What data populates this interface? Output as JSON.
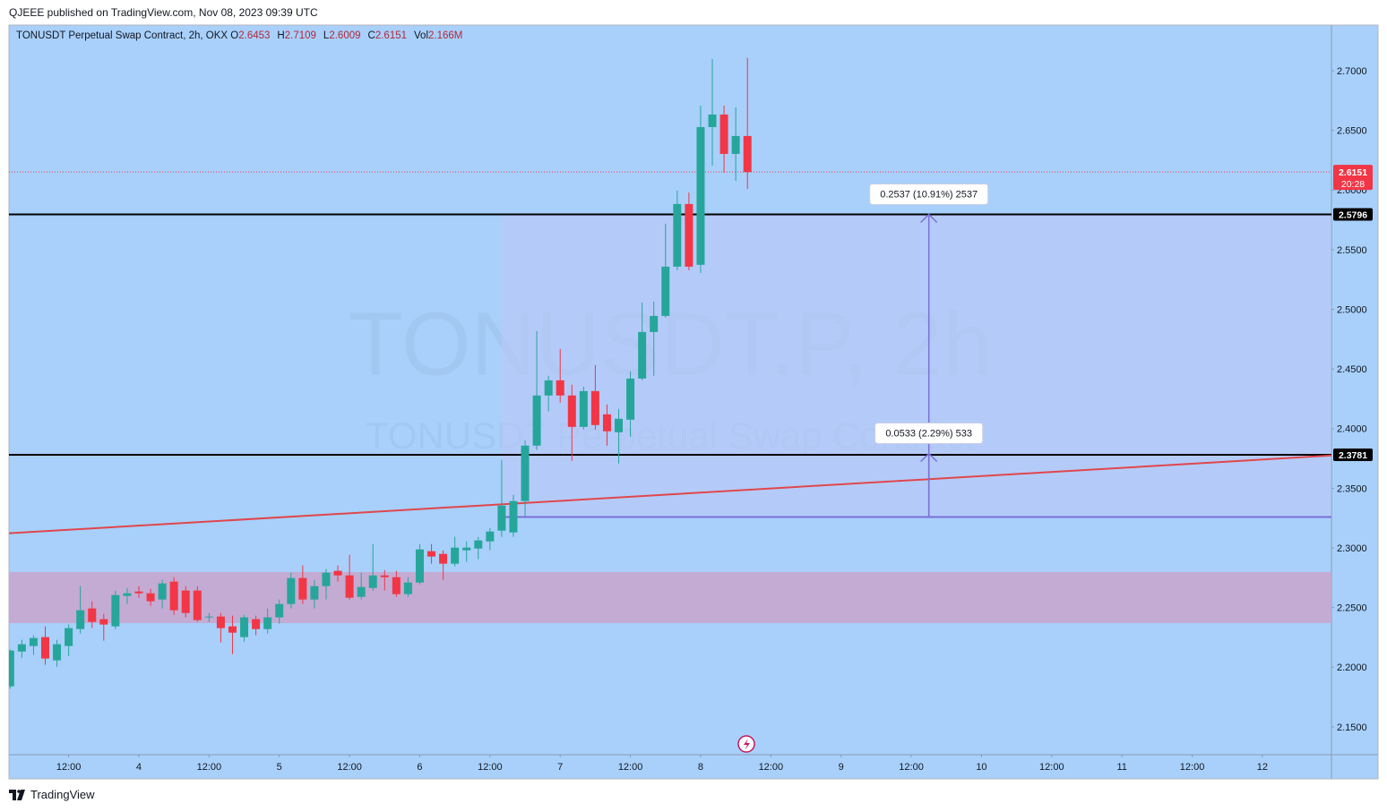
{
  "header": {
    "published": "QJEEE published on TradingView.com, Nov 08, 2023 09:39 UTC"
  },
  "footer": {
    "brand": "TradingView"
  },
  "chart_data": {
    "type": "candlestick",
    "title": "TONUSDT Perpetual Swap Contract, 2h, OKX",
    "legend_values": [
      {
        "label": "O",
        "value": "2.6453"
      },
      {
        "label": "H",
        "value": "2.7109"
      },
      {
        "label": "L",
        "value": "2.6009"
      },
      {
        "label": "C",
        "value": "2.6151"
      },
      {
        "label": "Vol",
        "value": "2.166M"
      }
    ],
    "watermark": [
      "TONUSDT.P, 2h",
      "TONUSDT Perpetual Swap Contract"
    ],
    "background": "#a8d0fb",
    "up_color": "#26a69a",
    "down_color": "#f23645",
    "x": [
      2,
      4,
      6,
      8,
      10,
      12,
      14,
      16,
      18,
      20,
      22,
      24,
      26,
      28,
      30,
      32,
      34,
      36,
      38,
      40,
      42,
      44,
      46,
      48,
      50,
      52,
      54,
      56,
      58,
      60,
      62,
      64,
      66,
      68,
      70,
      72,
      74,
      76,
      78,
      80,
      82,
      84,
      86,
      88,
      90,
      92,
      94,
      96,
      98,
      100,
      102,
      104,
      106,
      108,
      110,
      112,
      114,
      116,
      118,
      120,
      122,
      124,
      126,
      128
    ],
    "open": [
      2.184,
      2.2132,
      2.2178,
      2.2253,
      2.2058,
      2.2178,
      2.232,
      2.2493,
      2.2403,
      2.2343,
      2.2598,
      2.2635,
      2.262,
      2.2568,
      2.2718,
      2.2643,
      2.2643,
      2.2418,
      2.2425,
      2.2343,
      2.2253,
      2.2403,
      2.232,
      2.2418,
      2.253,
      2.2748,
      2.2568,
      2.268,
      2.2808,
      2.277,
      2.259,
      2.2665,
      2.277,
      2.2755,
      2.2613,
      2.271,
      2.2973,
      2.295,
      2.2868,
      2.298,
      2.2995,
      2.3055,
      2.3145,
      2.313,
      2.3393,
      2.3858,
      2.4278,
      2.4405,
      2.4278,
      2.4015,
      2.4315,
      2.412,
      2.397,
      2.4075,
      2.442,
      2.481,
      2.4945,
      2.5358,
      2.5883,
      2.5373,
      2.6528,
      2.6633,
      2.6303,
      2.6453
    ],
    "high": [
      2.215,
      2.223,
      2.2268,
      2.2343,
      2.223,
      2.2358,
      2.268,
      2.2553,
      2.2448,
      2.2643,
      2.2665,
      2.268,
      2.2658,
      2.2733,
      2.2755,
      2.268,
      2.268,
      2.2455,
      2.2455,
      2.2433,
      2.244,
      2.2433,
      2.2493,
      2.2568,
      2.2793,
      2.2853,
      2.2733,
      2.2823,
      2.2853,
      2.2943,
      2.2793,
      2.3033,
      2.2815,
      2.2808,
      2.2755,
      2.3033,
      2.3033,
      2.298,
      2.3093,
      2.3055,
      2.3093,
      2.3168,
      2.3738,
      2.3445,
      2.3903,
      2.4818,
      2.4443,
      2.4668,
      2.4368,
      2.4353,
      2.4533,
      2.4203,
      2.4165,
      2.448,
      2.5058,
      2.5065,
      2.5718,
      2.5995,
      2.598,
      2.6708,
      2.7098,
      2.6708,
      2.6693,
      2.7109
    ],
    "low": [
      2.182,
      2.208,
      2.2103,
      2.202,
      2.2005,
      2.2095,
      2.2283,
      2.2328,
      2.2223,
      2.232,
      2.253,
      2.2583,
      2.2515,
      2.2493,
      2.244,
      2.2418,
      2.238,
      2.238,
      2.2208,
      2.211,
      2.2215,
      2.2268,
      2.2283,
      2.2365,
      2.2493,
      2.253,
      2.2493,
      2.2568,
      2.2718,
      2.2568,
      2.2568,
      2.2643,
      2.2643,
      2.259,
      2.259,
      2.2695,
      2.2868,
      2.2733,
      2.2845,
      2.2883,
      2.2905,
      2.298,
      2.3093,
      2.3093,
      2.3265,
      2.382,
      2.4143,
      2.4218,
      2.373,
      2.3993,
      2.3993,
      2.3858,
      2.3708,
      2.3933,
      2.4405,
      2.4443,
      2.493,
      2.5328,
      2.5328,
      2.5305,
      2.6205,
      2.6145,
      2.6078,
      2.6009
    ],
    "close": [
      2.214,
      2.2193,
      2.2245,
      2.2073,
      2.2193,
      2.2328,
      2.2478,
      2.238,
      2.2358,
      2.2605,
      2.262,
      2.262,
      2.2553,
      2.2703,
      2.2478,
      2.2455,
      2.2395,
      2.2425,
      2.2328,
      2.229,
      2.2418,
      2.232,
      2.2418,
      2.253,
      2.2748,
      2.2568,
      2.268,
      2.2793,
      2.277,
      2.2583,
      2.2673,
      2.277,
      2.2755,
      2.2613,
      2.271,
      2.2988,
      2.2928,
      2.2868,
      2.3003,
      2.3003,
      2.3063,
      2.3138,
      2.3355,
      2.3393,
      2.3858,
      2.4278,
      2.4405,
      2.4278,
      2.4015,
      2.4315,
      2.403,
      2.3978,
      2.4083,
      2.442,
      2.481,
      2.4945,
      2.5358,
      2.5883,
      2.5358,
      2.6528,
      2.6633,
      2.6303,
      2.6453,
      2.6151
    ],
    "xlim": [
      1.8,
      227.8
    ],
    "xticks": [
      {
        "value": 12,
        "label": "12:00"
      },
      {
        "value": 24,
        "label": "4"
      },
      {
        "value": 36,
        "label": "12:00"
      },
      {
        "value": 48,
        "label": "5"
      },
      {
        "value": 60,
        "label": "12:00"
      },
      {
        "value": 72,
        "label": "6"
      },
      {
        "value": 84,
        "label": "12:00"
      },
      {
        "value": 96,
        "label": "7"
      },
      {
        "value": 108,
        "label": "12:00"
      },
      {
        "value": 120,
        "label": "8"
      },
      {
        "value": 132,
        "label": "12:00"
      },
      {
        "value": 144,
        "label": "9"
      },
      {
        "value": 156,
        "label": "12:00"
      },
      {
        "value": 168,
        "label": "10"
      },
      {
        "value": 180,
        "label": "12:00"
      },
      {
        "value": 192,
        "label": "11"
      },
      {
        "value": 204,
        "label": "12:00"
      },
      {
        "value": 216,
        "label": "12"
      }
    ],
    "ylim": [
      2.1267,
      2.7383
    ],
    "yticks": [
      {
        "value": 2.7,
        "label": "2.7000"
      },
      {
        "value": 2.65,
        "label": "2.6500"
      },
      {
        "value": 2.6,
        "label": "2.6000"
      },
      {
        "value": 2.55,
        "label": "2.5500"
      },
      {
        "value": 2.5,
        "label": "2.5000"
      },
      {
        "value": 2.45,
        "label": "2.4500"
      },
      {
        "value": 2.4,
        "label": "2.4000"
      },
      {
        "value": 2.35,
        "label": "2.3500"
      },
      {
        "value": 2.3,
        "label": "2.3000"
      },
      {
        "value": 2.25,
        "label": "2.2500"
      },
      {
        "value": 2.2,
        "label": "2.2000"
      },
      {
        "value": 2.15,
        "label": "2.1500"
      }
    ],
    "last_price": {
      "value": 2.6151,
      "label": "2.6151",
      "countdown": "20:28",
      "color": "#f23645"
    },
    "horizontal_lines": [
      {
        "value": 2.5796,
        "label": "2.5796"
      },
      {
        "value": 2.3781,
        "label": "2.3781"
      }
    ],
    "trendline": {
      "x": [
        1.8,
        227.8
      ],
      "y": [
        2.3123,
        2.3775
      ],
      "color": "#e0474c"
    },
    "zone": {
      "low": 2.237,
      "high": 2.2798,
      "color": "#c6a6ce"
    },
    "measure_box": {
      "x_start": 86,
      "low": 2.3259,
      "high": 2.5796,
      "x_arrow": 159,
      "color": "#7b6fd8"
    },
    "measurements": [
      {
        "from": 2.3259,
        "to": 2.5796,
        "label": "0.2537 (10.91%) 2537"
      },
      {
        "from": 2.3259,
        "to": 2.3792,
        "label": "0.0533 (2.29%) 533"
      }
    ]
  }
}
